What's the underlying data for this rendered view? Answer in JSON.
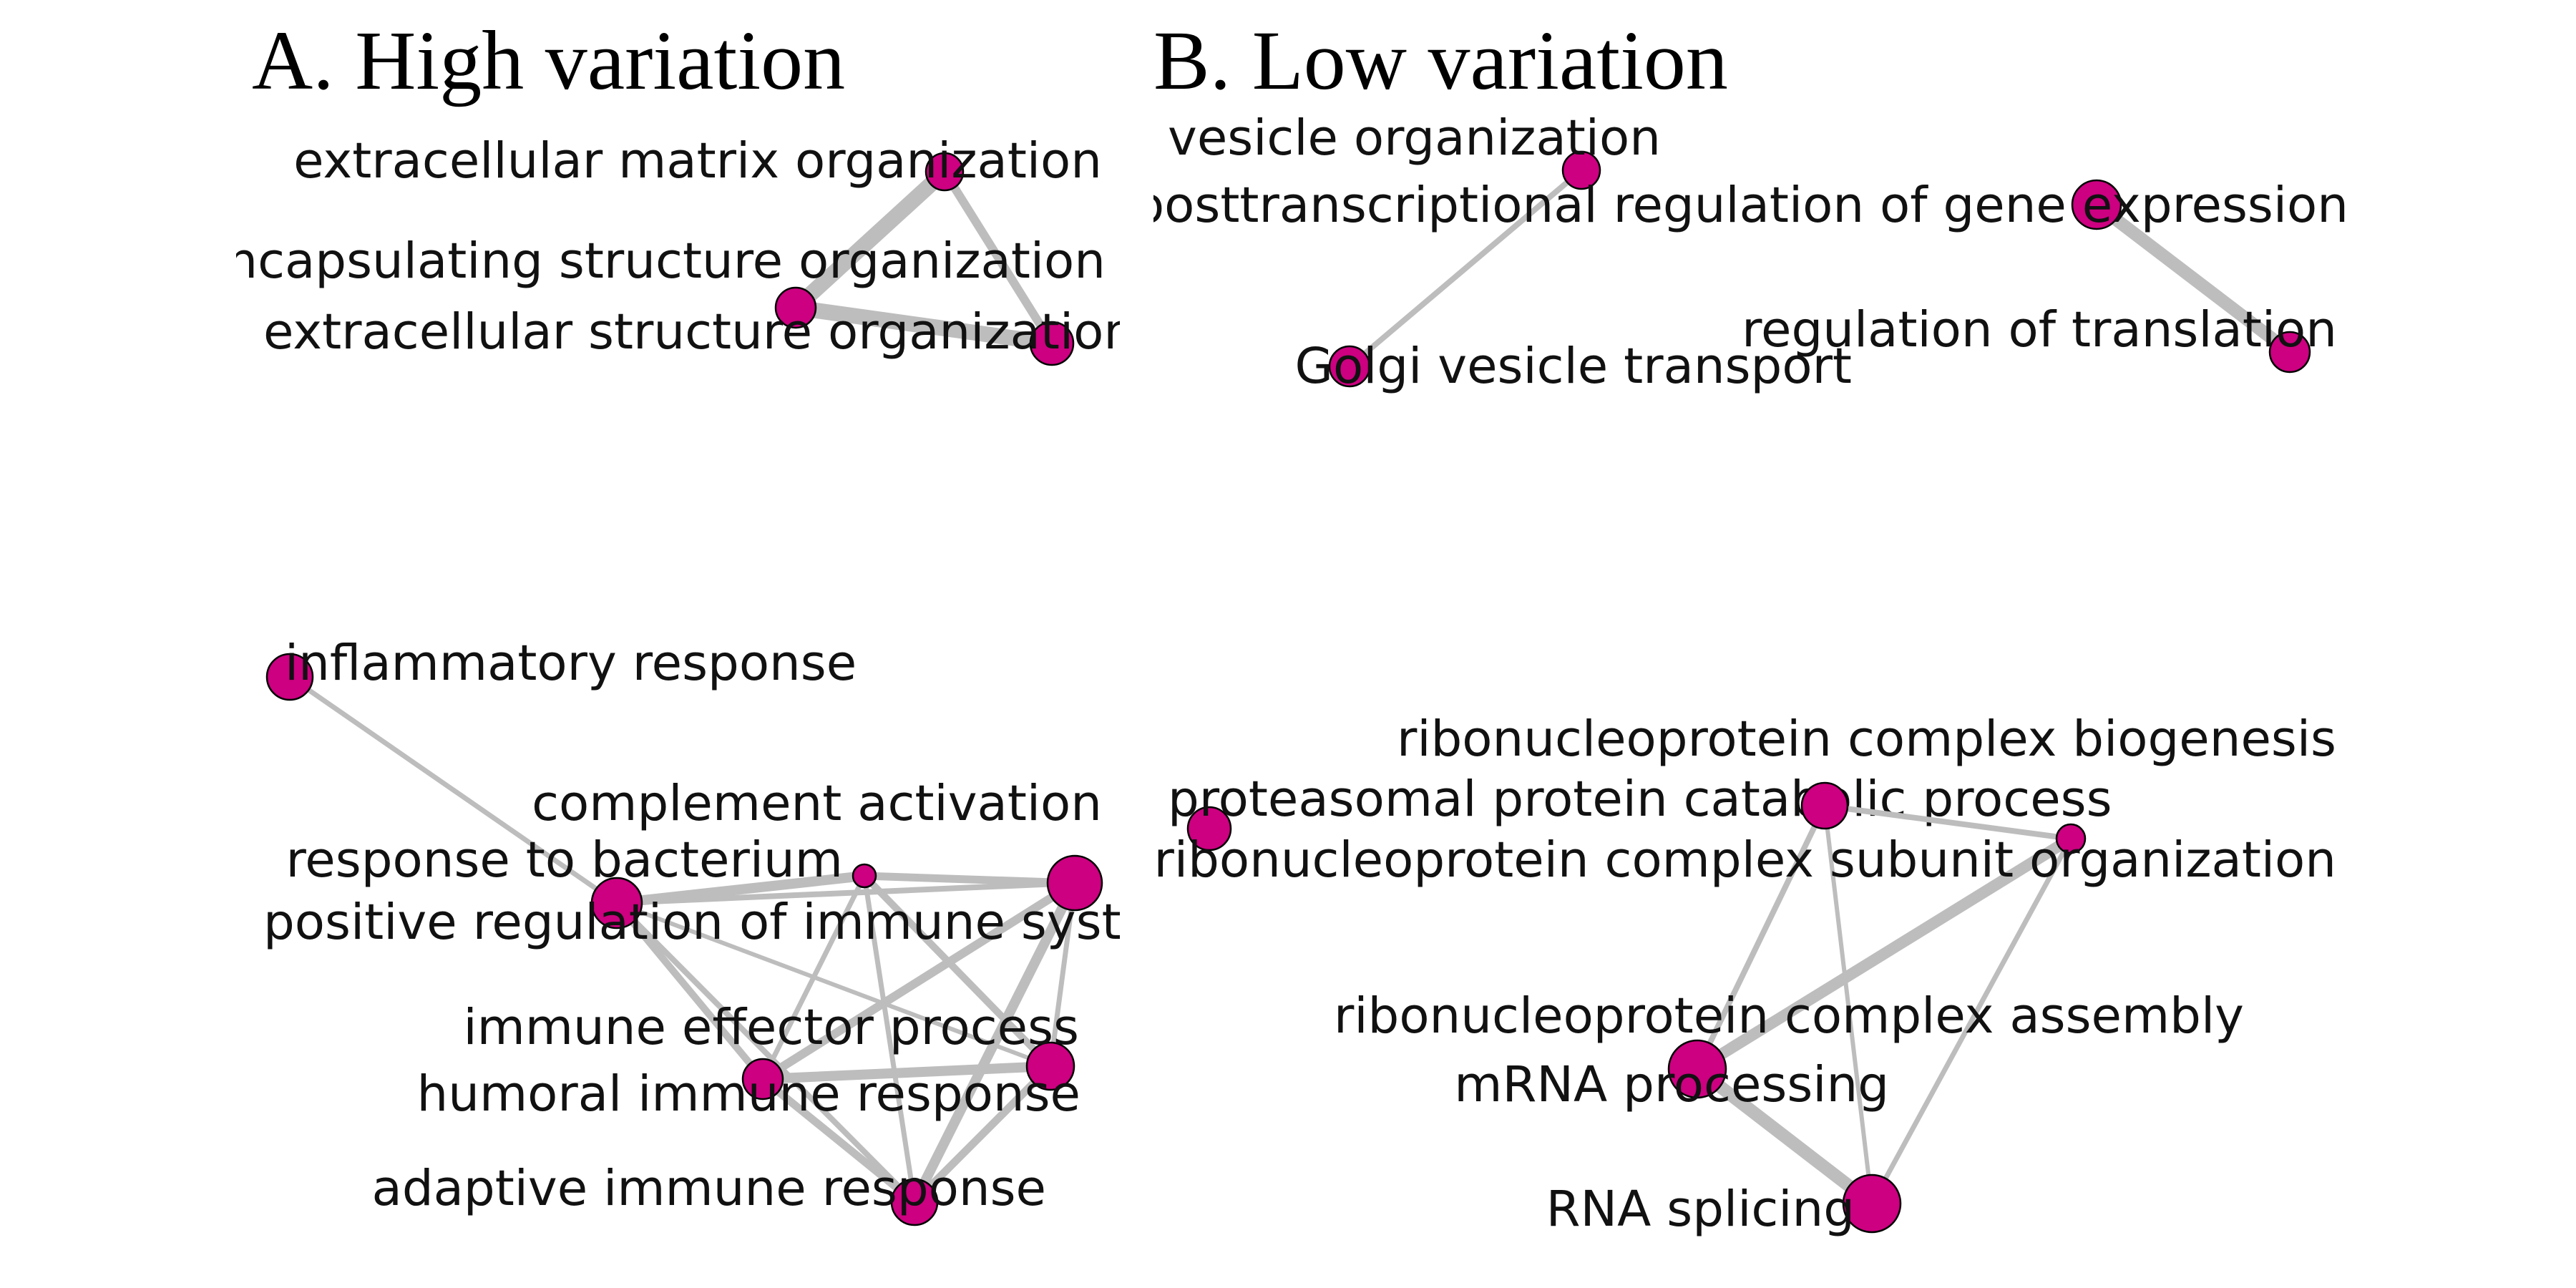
{
  "node_color": "#cc0080",
  "edge_color": "#bdbdbd",
  "panels": [
    {
      "title": "A. High variation",
      "clusters": [
        {
          "nodes": [
            {
              "label": "extracellular matrix organization"
            },
            {
              "label": "encapsulating structure organization"
            },
            {
              "label": "extracellular structure organization"
            }
          ],
          "edges": [
            [
              0,
              1
            ],
            [
              0,
              2
            ],
            [
              1,
              2
            ]
          ]
        },
        {
          "nodes": [
            {
              "label": "inflammatory response"
            },
            {
              "label": "complement activation"
            },
            {
              "label": "response to bacterium"
            },
            {
              "label": "positive regulation of immune system process"
            },
            {
              "label": "immune effector process"
            },
            {
              "label": "humoral immune response"
            },
            {
              "label": "adaptive immune response"
            }
          ],
          "edges": [
            [
              0,
              2
            ],
            [
              1,
              2
            ],
            [
              1,
              3
            ],
            [
              2,
              3
            ],
            [
              1,
              4
            ],
            [
              1,
              5
            ],
            [
              1,
              6
            ],
            [
              2,
              4
            ],
            [
              2,
              5
            ],
            [
              2,
              6
            ],
            [
              3,
              4
            ],
            [
              3,
              5
            ],
            [
              3,
              6
            ],
            [
              4,
              5
            ],
            [
              4,
              6
            ],
            [
              5,
              6
            ]
          ]
        }
      ]
    },
    {
      "title": "B. Low variation",
      "clusters": [
        {
          "nodes": [
            {
              "label": "vesicle organization"
            },
            {
              "label": "Golgi vesicle transport"
            }
          ],
          "edges": [
            [
              0,
              1
            ]
          ]
        },
        {
          "nodes": [
            {
              "label": "posttranscriptional regulation of gene expression"
            },
            {
              "label": "regulation of translation"
            }
          ],
          "edges": [
            [
              0,
              1
            ]
          ]
        },
        {
          "nodes": [
            {
              "label": "proteasomal protein catabolic process"
            }
          ],
          "edges": []
        },
        {
          "nodes": [
            {
              "label": "ribonucleoprotein complex biogenesis"
            },
            {
              "label": "ribonucleoprotein complex subunit organization"
            },
            {
              "label": "ribonucleoprotein complex assembly"
            },
            {
              "label": "mRNA processing"
            },
            {
              "label": "RNA splicing"
            }
          ],
          "edges": [
            [
              0,
              1
            ],
            [
              0,
              2
            ],
            [
              0,
              3
            ],
            [
              0,
              4
            ],
            [
              1,
              2
            ],
            [
              1,
              3
            ],
            [
              1,
              4
            ],
            [
              2,
              3
            ],
            [
              2,
              4
            ],
            [
              3,
              4
            ]
          ]
        }
      ]
    }
  ]
}
